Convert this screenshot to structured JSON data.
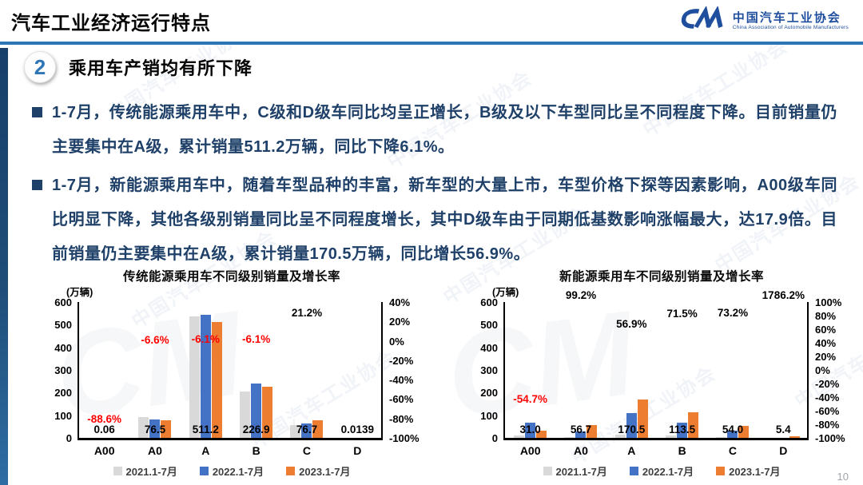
{
  "header": {
    "title": "汽车工业经济运行特点",
    "logo": {
      "mark": "CM",
      "name_cn": "中国汽车工业协会",
      "name_en": "China Association of Automobile Manufacturers"
    }
  },
  "section": {
    "number": "2",
    "title": "乘用车产销均有所下降"
  },
  "bullets": [
    "1-7月，传统能源乘用车中，C级和D级车同比均呈正增长，B级及以下车型同比呈不同程度下降。目前销量仍主要集中在A级，累计销量511.2万辆，同比下降6.1%。",
    "1-7月，新能源乘用车中，随着车型品种的丰富，新车型的大量上市，车型价格下探等因素影响，A00级车同比明显下降，其他各级别销量同比呈不同程度增长，其中D级车由于同期低基数影响涨幅最大，达17.9倍。目前销量仍主要集中在A级，累计销量170.5万辆，同比增长56.9%。"
  ],
  "watermark": {
    "text": "中国汽车工业协会",
    "mark": "CM"
  },
  "page_number": "10",
  "colors": {
    "accent_blue": "#2e75b6",
    "body_text": "#1f4068",
    "bar_2021": "#d9d9d9",
    "bar_2022": "#4472c4",
    "bar_2023": "#ed7d31",
    "negative_label": "#ff0000"
  },
  "chart_data": [
    {
      "type": "bar",
      "title": "传统能源乘用车不同级别销量及增长率",
      "unit": "(万辆)",
      "categories": [
        "A00",
        "A0",
        "A",
        "B",
        "C",
        "D"
      ],
      "series": [
        {
          "name": "2021.1-7月",
          "color": "#d9d9d9",
          "values": [
            1.0,
            93,
            537,
            205,
            55,
            0.05
          ]
        },
        {
          "name": "2022.1-7月",
          "color": "#4472c4",
          "values": [
            0.53,
            81.9,
            544.4,
            241.6,
            63.3,
            0.01
          ]
        },
        {
          "name": "2023.1-7月",
          "color": "#ed7d31",
          "values": [
            0.06,
            76.5,
            511.2,
            226.9,
            76.7,
            0.0139
          ]
        }
      ],
      "value_labels": [
        "0.06",
        "76.5",
        "511.2",
        "226.9",
        "76.7",
        "0.0139"
      ],
      "growth_labels": [
        "-88.6%",
        "-6.6%",
        "-6.1%",
        "-6.1%",
        "21.2%",
        ""
      ],
      "left_axis": {
        "min": 0,
        "max": 600,
        "ticks": [
          600,
          500,
          400,
          300,
          200,
          100,
          0
        ]
      },
      "right_axis": {
        "min": -100,
        "max": 40,
        "ticks": [
          "40%",
          "20%",
          "0%",
          "-20%",
          "-40%",
          "-60%",
          "-80%",
          "-100%"
        ]
      },
      "legend_position": "bottom",
      "grid": false
    },
    {
      "type": "bar",
      "title": "新能源乘用车不同级别销量及增长率",
      "unit": "(万辆)",
      "categories": [
        "A00",
        "A0",
        "A",
        "B",
        "C",
        "D"
      ],
      "series": [
        {
          "name": "2021.1-7月",
          "color": "#d9d9d9",
          "values": [
            10,
            2,
            15,
            10,
            2,
            0.02
          ]
        },
        {
          "name": "2022.1-7月",
          "color": "#4472c4",
          "values": [
            68.4,
            28.5,
            108.7,
            66.2,
            31.2,
            0.29
          ]
        },
        {
          "name": "2023.1-7月",
          "color": "#ed7d31",
          "values": [
            31.0,
            56.7,
            170.5,
            113.5,
            54.0,
            5.4
          ]
        }
      ],
      "value_labels": [
        "31.0",
        "56.7",
        "170.5",
        "113.5",
        "54.0",
        "5.4"
      ],
      "growth_labels": [
        "-54.7%",
        "99.2%",
        "56.9%",
        "71.5%",
        "73.2%",
        "1786.2%"
      ],
      "left_axis": {
        "min": 0,
        "max": 600,
        "ticks": [
          600,
          500,
          400,
          300,
          200,
          100,
          0
        ]
      },
      "right_axis": {
        "min": -100,
        "max": 100,
        "ticks": [
          "100%",
          "80%",
          "60%",
          "40%",
          "20%",
          "0%",
          "-20%",
          "-40%",
          "-60%",
          "-80%",
          "-100%"
        ]
      },
      "legend_position": "bottom",
      "grid": false
    }
  ]
}
